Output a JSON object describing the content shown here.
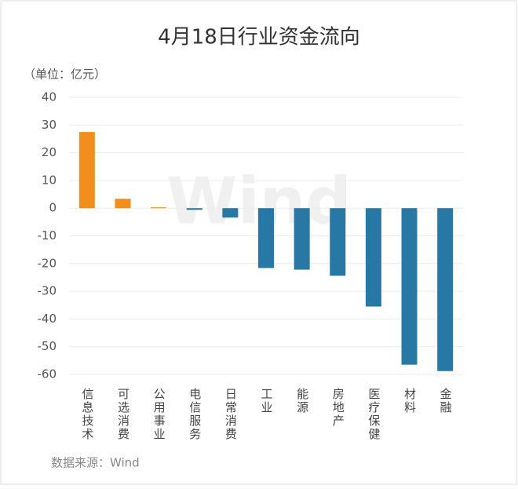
{
  "chart_data": {
    "type": "bar",
    "title": "4月18日行业资金流向",
    "unit_label": "（单位：亿元）",
    "source": "数据来源：Wind",
    "watermark": "Wind",
    "categories": [
      "信息技术",
      "可选消费",
      "公用事业",
      "电信服务",
      "日常消费",
      "工业",
      "能源",
      "房地产",
      "医疗保健",
      "材料",
      "金融"
    ],
    "values": [
      27.5,
      3.4,
      0.3,
      -0.6,
      -3.4,
      -21.6,
      -22.2,
      -24.4,
      -35.5,
      -56.5,
      -58.8
    ],
    "positive_color": "#f28e1e",
    "negative_color": "#2878a6",
    "ylim": [
      -60,
      40
    ],
    "yticks": [
      -60,
      -50,
      -40,
      -30,
      -20,
      -10,
      0,
      10,
      20,
      30,
      40
    ],
    "grid": true
  }
}
